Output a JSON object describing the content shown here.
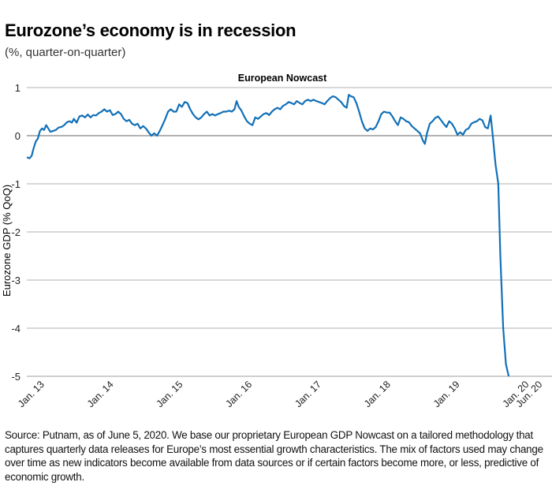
{
  "header": {
    "title": "Eurozone’s economy is in recession",
    "subtitle": "(%, quarter-on-quarter)"
  },
  "footer": {
    "source_note": "Source: Putnam, as of June 5, 2020. We base our proprietary European GDP Nowcast on a tailored methodology that captures quarterly data releases for Europe’s most essential growth characteristics. The mix of factors used may change over time as new indicators become available from data sources or if certain factors become more, or less, predictive of economic growth."
  },
  "colors": {
    "line": "#1270b8",
    "grid": "#b0b0b0",
    "zero": "#666666"
  },
  "chart_data": {
    "type": "line",
    "title": "European Nowcast",
    "xlabel": "",
    "ylabel": "Eurozone GDP (% QoQ)",
    "ylim": [
      -5,
      1
    ],
    "yticks": [
      1,
      0,
      -1,
      -2,
      -3,
      -4,
      -5
    ],
    "xticks": [
      {
        "t": 0.0,
        "label": "Jan. 13"
      },
      {
        "t": 1.0,
        "label": "Jan. 14"
      },
      {
        "t": 2.0,
        "label": "Jan. 15"
      },
      {
        "t": 3.0,
        "label": "Jan. 16"
      },
      {
        "t": 4.0,
        "label": "Jan. 17"
      },
      {
        "t": 5.0,
        "label": "Jan. 18"
      },
      {
        "t": 6.0,
        "label": "Jan. 19"
      },
      {
        "t": 7.0,
        "label": "Jan. 20"
      },
      {
        "t": 7.42,
        "label": "Jun. 20"
      }
    ],
    "xlim": [
      -0.1,
      7.44
    ],
    "grid": true,
    "series": [
      {
        "name": "European Nowcast",
        "x_unit": "years since Jan. 2013",
        "points": [
          [
            -0.1,
            -0.45
          ],
          [
            -0.06,
            -0.47
          ],
          [
            -0.03,
            -0.42
          ],
          [
            0.0,
            -0.25
          ],
          [
            0.03,
            -0.12
          ],
          [
            0.06,
            -0.06
          ],
          [
            0.09,
            0.1
          ],
          [
            0.12,
            0.15
          ],
          [
            0.15,
            0.12
          ],
          [
            0.18,
            0.22
          ],
          [
            0.21,
            0.15
          ],
          [
            0.24,
            0.08
          ],
          [
            0.28,
            0.1
          ],
          [
            0.32,
            0.12
          ],
          [
            0.36,
            0.17
          ],
          [
            0.4,
            0.18
          ],
          [
            0.44,
            0.22
          ],
          [
            0.48,
            0.28
          ],
          [
            0.52,
            0.3
          ],
          [
            0.55,
            0.27
          ],
          [
            0.58,
            0.35
          ],
          [
            0.62,
            0.27
          ],
          [
            0.66,
            0.4
          ],
          [
            0.7,
            0.42
          ],
          [
            0.74,
            0.38
          ],
          [
            0.78,
            0.44
          ],
          [
            0.82,
            0.38
          ],
          [
            0.86,
            0.43
          ],
          [
            0.9,
            0.42
          ],
          [
            0.94,
            0.47
          ],
          [
            0.98,
            0.5
          ],
          [
            1.02,
            0.55
          ],
          [
            1.06,
            0.5
          ],
          [
            1.1,
            0.53
          ],
          [
            1.14,
            0.43
          ],
          [
            1.18,
            0.45
          ],
          [
            1.22,
            0.5
          ],
          [
            1.26,
            0.45
          ],
          [
            1.3,
            0.35
          ],
          [
            1.34,
            0.3
          ],
          [
            1.38,
            0.33
          ],
          [
            1.42,
            0.25
          ],
          [
            1.46,
            0.22
          ],
          [
            1.5,
            0.25
          ],
          [
            1.54,
            0.15
          ],
          [
            1.58,
            0.2
          ],
          [
            1.62,
            0.15
          ],
          [
            1.66,
            0.07
          ],
          [
            1.7,
            0.0
          ],
          [
            1.74,
            0.05
          ],
          [
            1.78,
            0.0
          ],
          [
            1.82,
            0.1
          ],
          [
            1.86,
            0.22
          ],
          [
            1.9,
            0.35
          ],
          [
            1.94,
            0.5
          ],
          [
            1.98,
            0.55
          ],
          [
            2.02,
            0.5
          ],
          [
            2.06,
            0.5
          ],
          [
            2.1,
            0.65
          ],
          [
            2.14,
            0.6
          ],
          [
            2.18,
            0.7
          ],
          [
            2.22,
            0.68
          ],
          [
            2.26,
            0.55
          ],
          [
            2.3,
            0.45
          ],
          [
            2.34,
            0.38
          ],
          [
            2.38,
            0.34
          ],
          [
            2.42,
            0.38
          ],
          [
            2.46,
            0.45
          ],
          [
            2.5,
            0.5
          ],
          [
            2.54,
            0.42
          ],
          [
            2.58,
            0.45
          ],
          [
            2.62,
            0.42
          ],
          [
            2.66,
            0.45
          ],
          [
            2.7,
            0.47
          ],
          [
            2.74,
            0.5
          ],
          [
            2.78,
            0.5
          ],
          [
            2.82,
            0.52
          ],
          [
            2.86,
            0.5
          ],
          [
            2.9,
            0.55
          ],
          [
            2.93,
            0.72
          ],
          [
            2.96,
            0.6
          ],
          [
            3.0,
            0.52
          ],
          [
            3.04,
            0.4
          ],
          [
            3.08,
            0.3
          ],
          [
            3.12,
            0.25
          ],
          [
            3.16,
            0.22
          ],
          [
            3.2,
            0.38
          ],
          [
            3.24,
            0.35
          ],
          [
            3.28,
            0.4
          ],
          [
            3.32,
            0.45
          ],
          [
            3.36,
            0.47
          ],
          [
            3.4,
            0.43
          ],
          [
            3.44,
            0.5
          ],
          [
            3.48,
            0.55
          ],
          [
            3.52,
            0.58
          ],
          [
            3.56,
            0.55
          ],
          [
            3.6,
            0.62
          ],
          [
            3.64,
            0.65
          ],
          [
            3.68,
            0.7
          ],
          [
            3.72,
            0.68
          ],
          [
            3.76,
            0.65
          ],
          [
            3.8,
            0.72
          ],
          [
            3.84,
            0.68
          ],
          [
            3.88,
            0.65
          ],
          [
            3.92,
            0.72
          ],
          [
            3.96,
            0.75
          ],
          [
            4.0,
            0.72
          ],
          [
            4.04,
            0.75
          ],
          [
            4.08,
            0.72
          ],
          [
            4.12,
            0.7
          ],
          [
            4.16,
            0.68
          ],
          [
            4.2,
            0.65
          ],
          [
            4.24,
            0.72
          ],
          [
            4.28,
            0.78
          ],
          [
            4.32,
            0.82
          ],
          [
            4.36,
            0.8
          ],
          [
            4.4,
            0.75
          ],
          [
            4.44,
            0.7
          ],
          [
            4.48,
            0.62
          ],
          [
            4.52,
            0.58
          ],
          [
            4.55,
            0.85
          ],
          [
            4.58,
            0.82
          ],
          [
            4.62,
            0.8
          ],
          [
            4.66,
            0.68
          ],
          [
            4.7,
            0.5
          ],
          [
            4.74,
            0.3
          ],
          [
            4.78,
            0.15
          ],
          [
            4.82,
            0.1
          ],
          [
            4.86,
            0.15
          ],
          [
            4.9,
            0.13
          ],
          [
            4.94,
            0.18
          ],
          [
            4.98,
            0.3
          ],
          [
            5.02,
            0.45
          ],
          [
            5.06,
            0.5
          ],
          [
            5.1,
            0.48
          ],
          [
            5.14,
            0.48
          ],
          [
            5.18,
            0.4
          ],
          [
            5.22,
            0.3
          ],
          [
            5.26,
            0.22
          ],
          [
            5.3,
            0.38
          ],
          [
            5.34,
            0.35
          ],
          [
            5.38,
            0.3
          ],
          [
            5.42,
            0.28
          ],
          [
            5.46,
            0.2
          ],
          [
            5.5,
            0.15
          ],
          [
            5.54,
            0.1
          ],
          [
            5.58,
            0.05
          ],
          [
            5.62,
            -0.1
          ],
          [
            5.65,
            -0.17
          ],
          [
            5.68,
            0.05
          ],
          [
            5.72,
            0.25
          ],
          [
            5.76,
            0.3
          ],
          [
            5.8,
            0.37
          ],
          [
            5.84,
            0.4
          ],
          [
            5.88,
            0.33
          ],
          [
            5.92,
            0.25
          ],
          [
            5.96,
            0.18
          ],
          [
            6.0,
            0.3
          ],
          [
            6.04,
            0.25
          ],
          [
            6.08,
            0.15
          ],
          [
            6.12,
            0.02
          ],
          [
            6.16,
            0.07
          ],
          [
            6.2,
            0.02
          ],
          [
            6.24,
            0.12
          ],
          [
            6.28,
            0.15
          ],
          [
            6.32,
            0.25
          ],
          [
            6.36,
            0.28
          ],
          [
            6.4,
            0.3
          ],
          [
            6.44,
            0.35
          ],
          [
            6.48,
            0.32
          ],
          [
            6.52,
            0.18
          ],
          [
            6.56,
            0.15
          ],
          [
            6.6,
            0.42
          ],
          [
            6.63,
            0.0
          ],
          [
            6.67,
            -0.6
          ],
          [
            6.71,
            -1.0
          ],
          [
            6.74,
            -2.5
          ],
          [
            6.78,
            -4.0
          ],
          [
            6.82,
            -4.75
          ],
          [
            6.86,
            -5.0
          ]
        ]
      }
    ]
  }
}
